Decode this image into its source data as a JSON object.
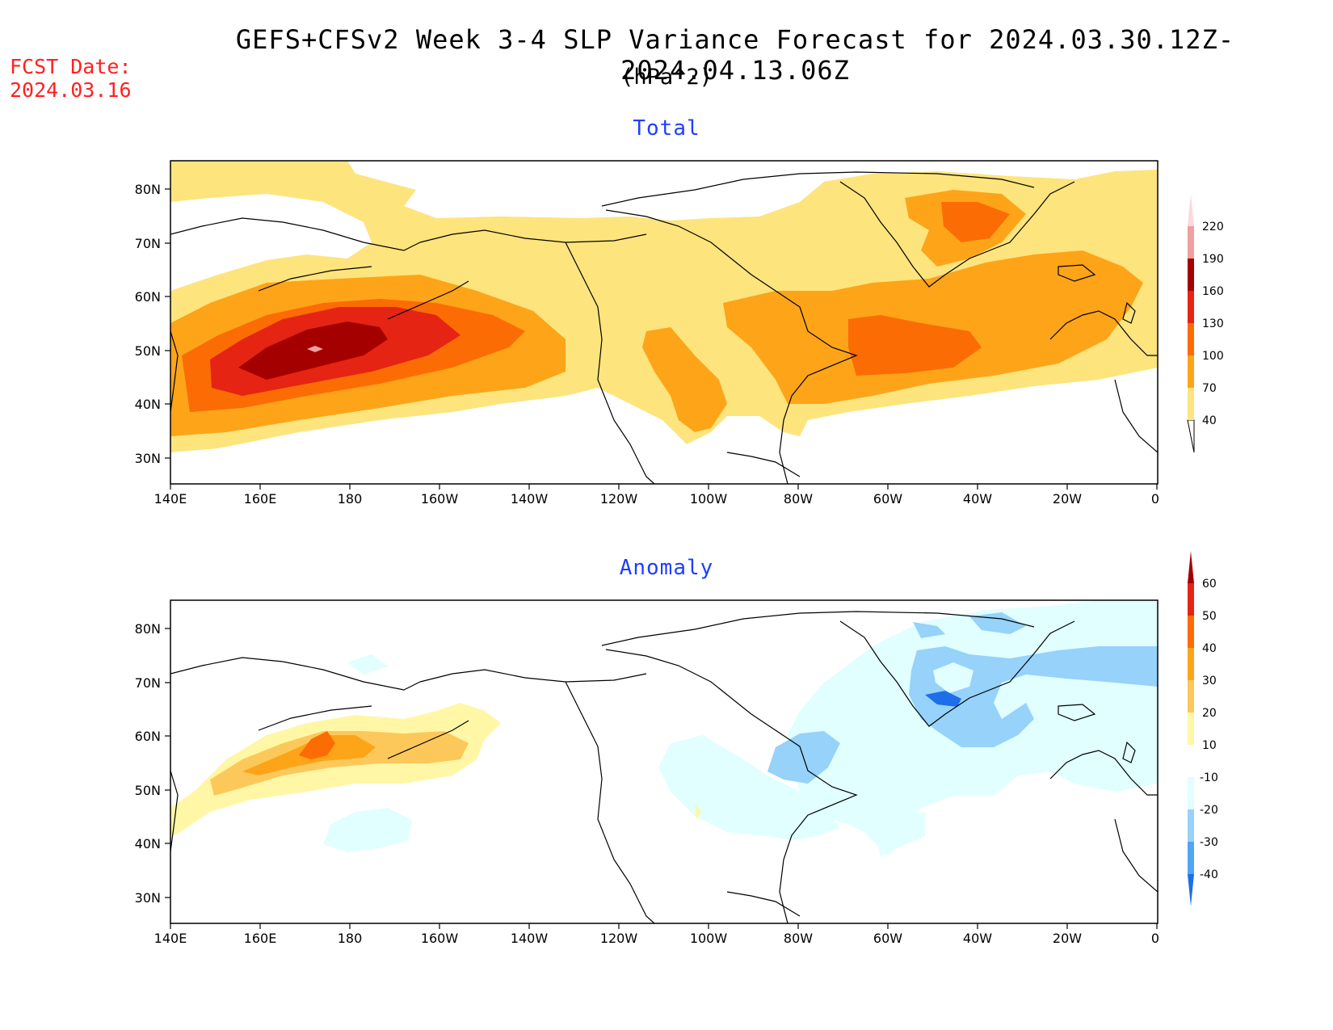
{
  "header": {
    "title": "GEFS+CFSv2 Week 3-4 SLP Variance Forecast for 2024.03.30.12Z-2024.04.13.06Z",
    "units": "(hPa^2)",
    "fcst_label": "FCST Date:",
    "fcst_date": "2024.03.16"
  },
  "panels": [
    {
      "title": "Total",
      "x_ticks": [
        "140E",
        "160E",
        "180",
        "160W",
        "140W",
        "120W",
        "100W",
        "80W",
        "60W",
        "40W",
        "20W",
        "0"
      ],
      "y_ticks": [
        "30N",
        "40N",
        "50N",
        "60N",
        "70N",
        "80N"
      ],
      "colorbar": {
        "levels": [
          "40",
          "70",
          "100",
          "130",
          "160",
          "190",
          "220"
        ],
        "colors": [
          "#fde47d",
          "#fda419",
          "#fc6c04",
          "#e52414",
          "#a50000",
          "#f0a0a0",
          "#fcd8dc"
        ]
      }
    },
    {
      "title": "Anomaly",
      "x_ticks": [
        "140E",
        "160E",
        "180",
        "160W",
        "140W",
        "120W",
        "100W",
        "80W",
        "60W",
        "40W",
        "20W",
        "0"
      ],
      "y_ticks": [
        "30N",
        "40N",
        "50N",
        "60N",
        "70N",
        "80N"
      ],
      "colorbar": {
        "levels": [
          "60",
          "50",
          "40",
          "30",
          "20",
          "10",
          "-10",
          "-20",
          "-30",
          "-40"
        ],
        "colors": [
          "#a50000",
          "#e52414",
          "#fc6c04",
          "#fda419",
          "#fdc85a",
          "#fff7a6",
          "#ffffff",
          "#e0fffe",
          "#96d2fa",
          "#50a5f5",
          "#1e6eeb"
        ]
      }
    }
  ]
}
